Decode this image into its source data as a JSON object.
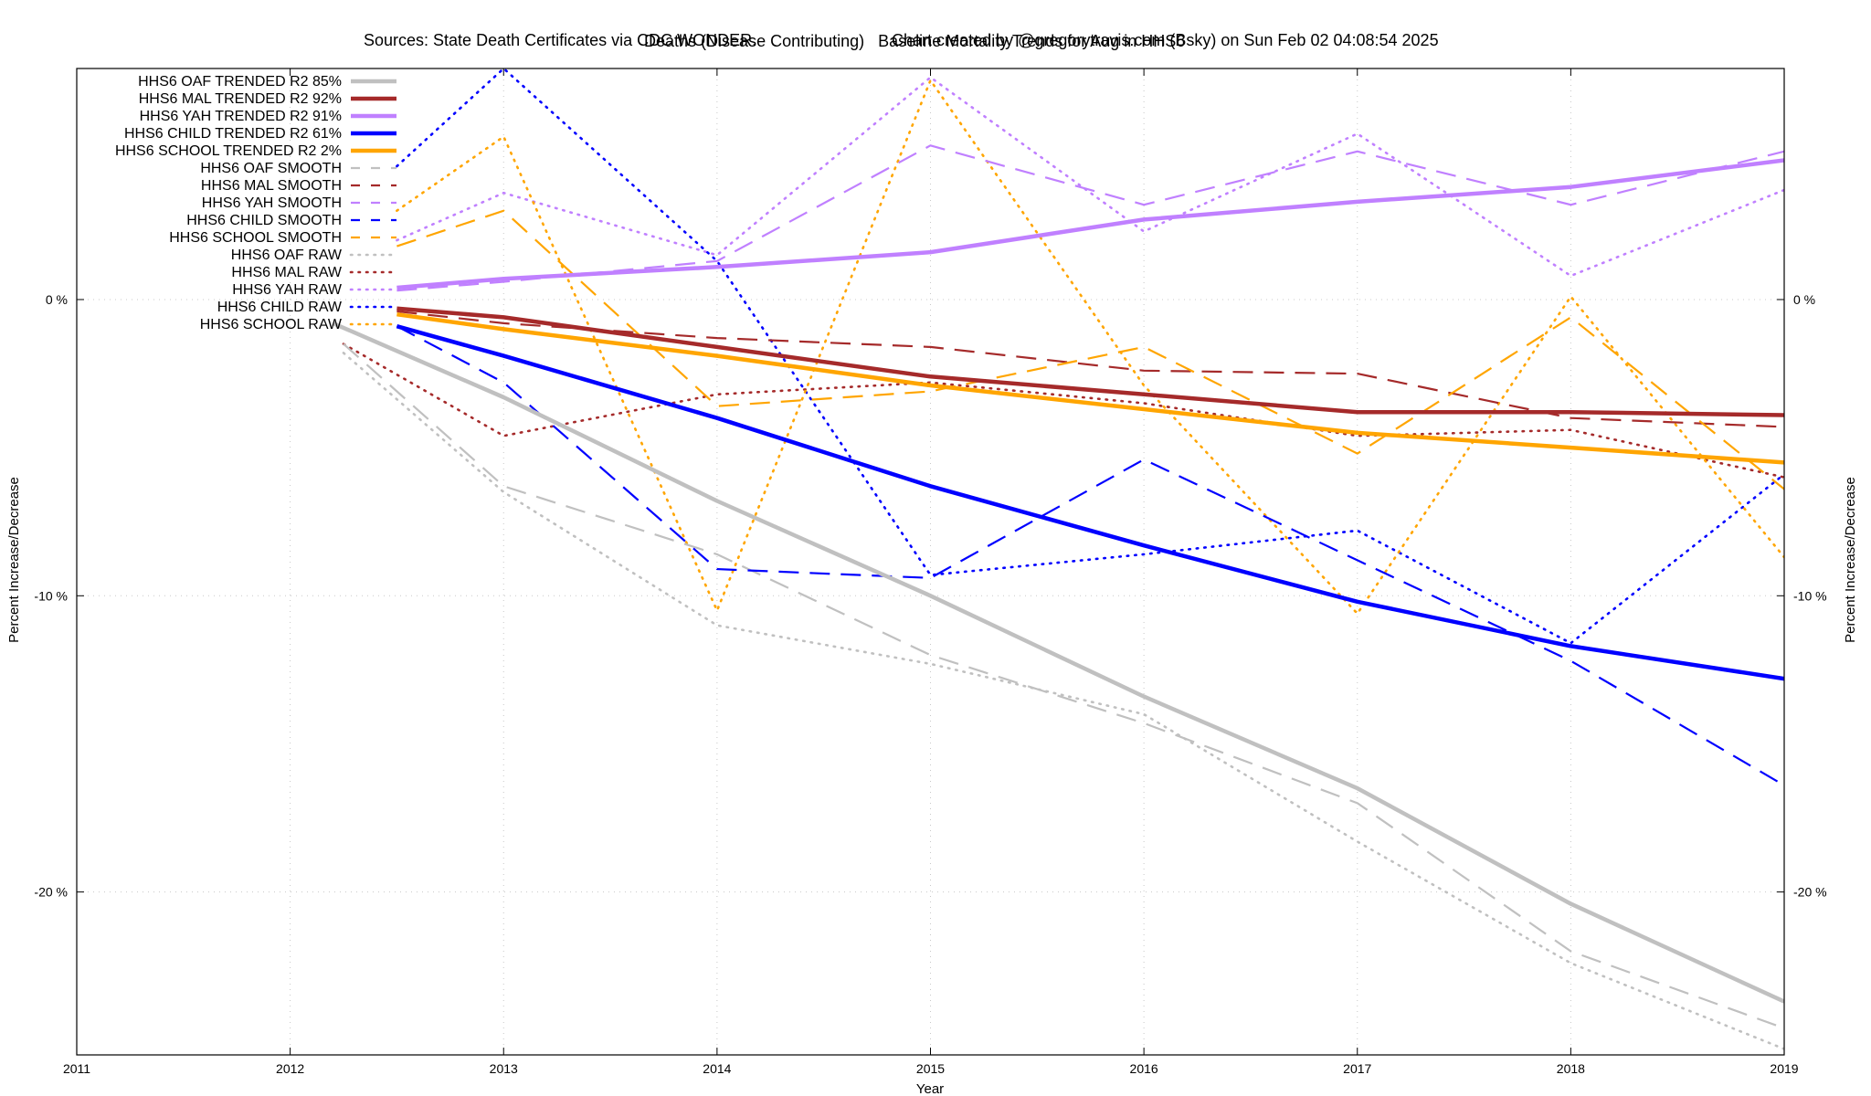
{
  "header": {
    "title_left": "Deaths (Disease Contributing)",
    "title_right": "Baseline Mortality Trends for Aug in HHS6",
    "sources": "Sources: State Death Certificates via CDC WONDER.",
    "credit": "Chart created by @gregorytravis.com (Bsky) on Sun Feb 02 04:08:54 2025"
  },
  "chart_data": {
    "type": "line",
    "title": "Deaths (Disease Contributing)  Baseline Mortality Trends for Aug in HHS6",
    "xlabel": "Year",
    "ylabel": "Percent Increase/Decrease",
    "y2label": "Percent Increase/Decrease",
    "xlim": [
      2011,
      2019
    ],
    "ylim": [
      -25.5,
      7.8
    ],
    "x_ticks": [
      "2011",
      "2012",
      "2013",
      "2014",
      "2015",
      "2016",
      "2017",
      "2018",
      "2019"
    ],
    "y_ticks": [
      {
        "value": 0,
        "label": "0 %"
      },
      {
        "value": -10,
        "label": "-10 %"
      },
      {
        "value": -20,
        "label": "-20 %"
      }
    ],
    "grid": true,
    "legend_position": "top-left",
    "colors": {
      "oaf": "#c0c0c0",
      "mal": "#a52a2a",
      "yah": "#c080ff",
      "child": "#0000ff",
      "school": "#ffa500"
    },
    "series": [
      {
        "name": "HHS6 OAF TRENDED R2  85%",
        "group": "oaf",
        "style": "trend",
        "x": [
          2012.2,
          2013,
          2014,
          2015,
          2016,
          2017,
          2018,
          2019
        ],
        "y": [
          -0.8,
          -3.3,
          -6.8,
          -10.0,
          -13.4,
          -16.5,
          -20.4,
          -23.7
        ]
      },
      {
        "name": "HHS6 MAL TRENDED R2  92%",
        "group": "mal",
        "style": "trend",
        "x": [
          2012.5,
          2013,
          2014,
          2015,
          2016,
          2017,
          2018,
          2019
        ],
        "y": [
          -0.3,
          -0.6,
          -1.6,
          -2.6,
          -3.2,
          -3.8,
          -3.8,
          -3.9
        ]
      },
      {
        "name": "HHS6 YAH TRENDED R2  91%",
        "group": "yah",
        "style": "trend",
        "x": [
          2012.5,
          2013,
          2014,
          2015,
          2016,
          2017,
          2018,
          2019
        ],
        "y": [
          0.4,
          0.7,
          1.1,
          1.6,
          2.7,
          3.3,
          3.8,
          4.7
        ]
      },
      {
        "name": "HHS6 CHILD TRENDED R2  61%",
        "group": "child",
        "style": "trend",
        "x": [
          2012.5,
          2013,
          2014,
          2015,
          2016,
          2017,
          2018,
          2019
        ],
        "y": [
          -0.9,
          -1.9,
          -4.0,
          -6.3,
          -8.3,
          -10.2,
          -11.7,
          -12.8
        ]
      },
      {
        "name": "HHS6 SCHOOL TRENDED R2   2%",
        "group": "school",
        "style": "trend",
        "x": [
          2012.5,
          2013,
          2014,
          2015,
          2016,
          2017,
          2018,
          2019
        ],
        "y": [
          -0.5,
          -1.0,
          -1.9,
          -2.9,
          -3.7,
          -4.5,
          -5.0,
          -5.5
        ]
      },
      {
        "name": "HHS6 OAF SMOOTH",
        "group": "oaf",
        "style": "smooth",
        "x": [
          2012.25,
          2013,
          2014,
          2015,
          2016,
          2017,
          2018,
          2019
        ],
        "y": [
          -1.5,
          -6.3,
          -8.6,
          -12.0,
          -14.3,
          -17.0,
          -22.0,
          -24.6
        ]
      },
      {
        "name": "HHS6 MAL SMOOTH",
        "group": "mal",
        "style": "smooth",
        "x": [
          2012.5,
          2013,
          2014,
          2015,
          2016,
          2017,
          2018,
          2019
        ],
        "y": [
          -0.4,
          -0.8,
          -1.3,
          -1.6,
          -2.4,
          -2.5,
          -4.0,
          -4.3
        ]
      },
      {
        "name": "HHS6 YAH SMOOTH",
        "group": "yah",
        "style": "smooth",
        "x": [
          2012.5,
          2013,
          2014,
          2015,
          2016,
          2017,
          2018,
          2019
        ],
        "y": [
          0.3,
          0.6,
          1.3,
          5.2,
          3.2,
          5.0,
          3.2,
          5.0
        ]
      },
      {
        "name": "HHS6 CHILD SMOOTH",
        "group": "child",
        "style": "smooth",
        "x": [
          2012.5,
          2013,
          2014,
          2015,
          2016,
          2017,
          2018,
          2019
        ],
        "y": [
          -0.9,
          -2.8,
          -9.1,
          -9.4,
          -5.4,
          -8.8,
          -12.2,
          -16.4
        ]
      },
      {
        "name": "HHS6 SCHOOL SMOOTH",
        "group": "school",
        "style": "smooth",
        "x": [
          2012.5,
          2013,
          2014,
          2015,
          2016,
          2017,
          2018,
          2019
        ],
        "y": [
          1.8,
          3.0,
          -3.6,
          -3.1,
          -1.6,
          -5.2,
          -0.6,
          -6.4
        ]
      },
      {
        "name": "HHS6 OAF RAW",
        "group": "oaf",
        "style": "raw",
        "x": [
          2012.25,
          2013,
          2014,
          2015,
          2016,
          2017,
          2018,
          2019
        ],
        "y": [
          -1.8,
          -6.5,
          -11.0,
          -12.3,
          -14.0,
          -18.3,
          -22.4,
          -25.3
        ]
      },
      {
        "name": "HHS6 MAL RAW",
        "group": "mal",
        "style": "raw",
        "x": [
          2012.25,
          2013,
          2014,
          2015,
          2016,
          2017,
          2018,
          2019
        ],
        "y": [
          -1.5,
          -4.6,
          -3.2,
          -2.8,
          -3.5,
          -4.6,
          -4.4,
          -6.0
        ]
      },
      {
        "name": "HHS6 YAH RAW",
        "group": "yah",
        "style": "raw",
        "x": [
          2012.5,
          2013,
          2014,
          2015,
          2016,
          2017,
          2018,
          2019
        ],
        "y": [
          2.0,
          3.6,
          1.5,
          7.5,
          2.3,
          5.6,
          0.8,
          3.7
        ]
      },
      {
        "name": "HHS6 CHILD RAW",
        "group": "child",
        "style": "raw",
        "x": [
          2012.5,
          2013,
          2014,
          2015,
          2016,
          2017,
          2018,
          2019
        ],
        "y": [
          4.5,
          7.8,
          1.3,
          -9.3,
          -8.6,
          -7.8,
          -11.6,
          -5.9
        ]
      },
      {
        "name": "HHS6 SCHOOL RAW",
        "group": "school",
        "style": "raw",
        "x": [
          2012.5,
          2013,
          2014,
          2015,
          2016,
          2017,
          2018,
          2019
        ],
        "y": [
          3.0,
          5.5,
          -10.5,
          7.4,
          -2.9,
          -10.6,
          0.1,
          -8.7
        ]
      }
    ]
  }
}
